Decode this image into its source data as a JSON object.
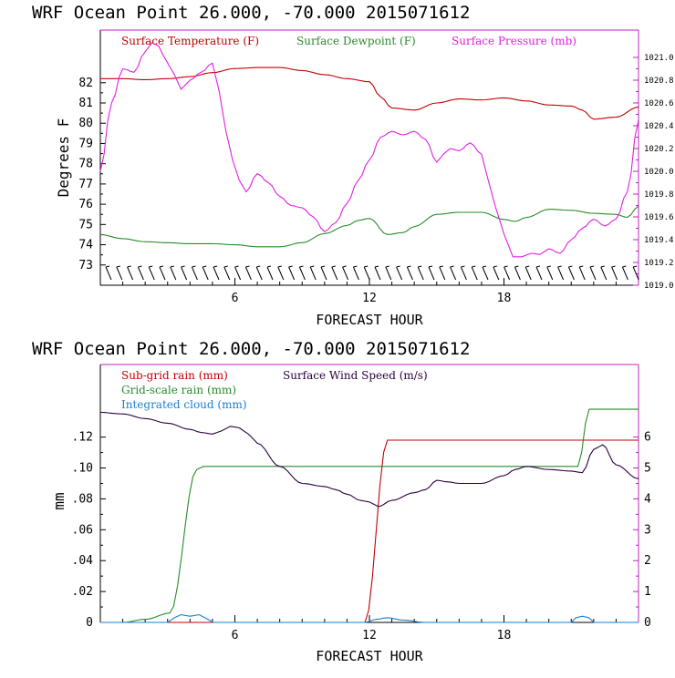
{
  "chart_data": [
    {
      "type": "line",
      "title": "WRF   Ocean Point   26.000, -70.000  2015071612",
      "xlabel": "FORECAST HOUR",
      "ylabel": "Degrees F",
      "xlim": [
        0,
        24
      ],
      "xticks": [
        6,
        12,
        18
      ],
      "xtick_labels": [
        "6",
        "12",
        "18"
      ],
      "ylim": [
        72.0,
        84.6
      ],
      "yticks": [
        73,
        74,
        75,
        76,
        77,
        78,
        79,
        80,
        81,
        82
      ],
      "ytick_labels": [
        "73",
        "74",
        "75",
        "76",
        "77",
        "78",
        "79",
        "80",
        "81",
        "82"
      ],
      "y2lim": [
        1019.0,
        1021.24
      ],
      "y2ticks": [
        1019.0,
        1019.2,
        1019.4,
        1019.6,
        1019.8,
        1020.0,
        1020.2,
        1020.4,
        1020.6,
        1020.8,
        1021.0
      ],
      "y2tick_labels": [
        "1019.0",
        "1019.2",
        "1019.4",
        "1019.6",
        "1019.8",
        "1020.0",
        "1020.2",
        "1020.4",
        "1020.6",
        "1020.8",
        "1021.0"
      ],
      "wind_barbs": true,
      "series": [
        {
          "name": "Surface Temperature (F)",
          "color": "#c00000",
          "axis": "left",
          "x": [
            0,
            1,
            2,
            3,
            4,
            5,
            6,
            7,
            8,
            9,
            10,
            11,
            12,
            12.5,
            13,
            14,
            15,
            16,
            17,
            18,
            19,
            20,
            21,
            21.5,
            22,
            23,
            24
          ],
          "y": [
            82.2,
            82.2,
            82.15,
            82.2,
            82.3,
            82.5,
            82.7,
            82.75,
            82.75,
            82.6,
            82.4,
            82.2,
            82.05,
            81.3,
            80.75,
            80.65,
            81.0,
            81.2,
            81.15,
            81.25,
            81.1,
            80.9,
            80.85,
            80.65,
            80.2,
            80.3,
            80.8
          ]
        },
        {
          "name": "Surface Dewpoint (F)",
          "color": "#2a8a2a",
          "axis": "left",
          "x": [
            0,
            1,
            2,
            3,
            4,
            5,
            6,
            7,
            8,
            9,
            10,
            11,
            11.5,
            12,
            12.8,
            13.5,
            14,
            15,
            16,
            17,
            18,
            18.5,
            19,
            20,
            21,
            22,
            23,
            23.5,
            24
          ],
          "y": [
            74.5,
            74.3,
            74.15,
            74.1,
            74.05,
            74.05,
            74.0,
            73.9,
            73.9,
            74.1,
            74.55,
            74.95,
            75.2,
            75.3,
            74.5,
            74.6,
            74.9,
            75.5,
            75.6,
            75.6,
            75.25,
            75.15,
            75.35,
            75.75,
            75.7,
            75.55,
            75.5,
            75.35,
            75.9
          ]
        },
        {
          "name": "Surface Pressure (mb)",
          "color": "#e020e0",
          "axis": "right",
          "x": [
            0,
            0.5,
            1,
            1.5,
            2,
            2.3,
            2.6,
            2.8,
            3,
            3.3,
            3.6,
            4,
            4.5,
            5,
            5.3,
            5.6,
            5.9,
            6.2,
            6.5,
            7,
            7.5,
            8,
            8.5,
            9,
            9.5,
            10,
            10.5,
            11,
            11.5,
            12,
            12.5,
            13,
            13.5,
            14,
            14.5,
            15,
            15.3,
            15.6,
            16,
            16.5,
            17,
            17.3,
            17.6,
            18,
            18.4,
            18.8,
            19.2,
            19.6,
            20,
            20.5,
            21,
            21.5,
            22,
            22.5,
            23,
            23.5,
            24
          ],
          "y": [
            1020.0,
            1020.6,
            1020.9,
            1020.87,
            1021.05,
            1021.13,
            1021.1,
            1021.02,
            1020.95,
            1020.85,
            1020.72,
            1020.8,
            1020.87,
            1020.95,
            1020.7,
            1020.35,
            1020.1,
            1019.92,
            1019.82,
            1019.98,
            1019.9,
            1019.78,
            1019.7,
            1019.68,
            1019.6,
            1019.47,
            1019.55,
            1019.72,
            1019.92,
            1020.1,
            1020.3,
            1020.35,
            1020.32,
            1020.35,
            1020.28,
            1020.08,
            1020.15,
            1020.2,
            1020.18,
            1020.25,
            1020.15,
            1019.92,
            1019.7,
            1019.45,
            1019.25,
            1019.25,
            1019.28,
            1019.27,
            1019.32,
            1019.28,
            1019.4,
            1019.5,
            1019.58,
            1019.52,
            1019.58,
            1019.82,
            1020.45
          ]
        }
      ]
    },
    {
      "type": "line",
      "title": "WRF   Ocean Point   26.000, -70.000  2015071612",
      "xlabel": "FORECAST HOUR",
      "ylabel": "mm",
      "xlim": [
        0,
        24
      ],
      "xticks": [
        6,
        12,
        18
      ],
      "xtick_labels": [
        "6",
        "12",
        "18"
      ],
      "ylim": [
        0,
        0.167
      ],
      "yticks": [
        0,
        0.02,
        0.04,
        0.06,
        0.08,
        0.1,
        0.12
      ],
      "ytick_labels": [
        "0",
        ".02",
        ".04",
        ".06",
        ".08",
        ".10",
        ".12"
      ],
      "y2lim": [
        0,
        8.35
      ],
      "y2ticks": [
        0,
        1,
        2,
        3,
        4,
        5,
        6
      ],
      "y2tick_labels": [
        "0",
        "1",
        "2",
        "3",
        "4",
        "5",
        "6"
      ],
      "series": [
        {
          "name": "Sub-grid rain (mm)",
          "color": "#c00000",
          "axis": "left",
          "x": [
            0,
            11.8,
            12.8,
            24
          ],
          "y": [
            0,
            0,
            0.118,
            0.118
          ]
        },
        {
          "name": "Grid-scale rain (mm)",
          "color": "#2a8a2a",
          "axis": "left",
          "x": [
            0,
            1,
            2,
            3.1,
            4.3,
            4.6,
            21.3,
            21.8,
            24
          ],
          "y": [
            0,
            0,
            0.002,
            0.006,
            0.099,
            0.101,
            0.101,
            0.138,
            0.138
          ]
        },
        {
          "name": "Integrated cloud (mm)",
          "color": "#1a7fd0",
          "axis": "left",
          "x": [
            0,
            3.0,
            3.3,
            3.6,
            4.0,
            4.4,
            4.8,
            5.0,
            11.8,
            12.3,
            12.8,
            13.5,
            14.5,
            21.0,
            21.2,
            21.5,
            21.8,
            22.0,
            24
          ],
          "y": [
            0,
            0,
            0.003,
            0.005,
            0.004,
            0.005,
            0.002,
            0,
            0,
            0.002,
            0.003,
            0.0015,
            0,
            0,
            0.003,
            0.004,
            0.003,
            0,
            0
          ]
        },
        {
          "name": "Surface Wind Speed (m/s)",
          "color": "#2a0040",
          "axis": "right",
          "x": [
            0,
            1,
            2,
            3,
            4,
            4.5,
            5,
            5.4,
            5.8,
            6.2,
            6.6,
            7,
            8,
            9,
            10,
            10.5,
            11,
            11.6,
            12,
            12.4,
            13,
            14,
            14.5,
            15,
            15.5,
            16,
            17,
            18,
            18.5,
            19,
            20,
            21,
            21.5,
            22,
            22.4,
            23,
            24
          ],
          "y": [
            6.8,
            6.75,
            6.6,
            6.45,
            6.25,
            6.15,
            6.1,
            6.2,
            6.35,
            6.3,
            6.1,
            5.8,
            5.05,
            4.5,
            4.4,
            4.3,
            4.15,
            3.95,
            3.9,
            3.75,
            3.95,
            4.2,
            4.3,
            4.6,
            4.55,
            4.5,
            4.5,
            4.75,
            4.95,
            5.05,
            4.95,
            4.9,
            4.85,
            5.6,
            5.75,
            5.1,
            4.65
          ]
        }
      ]
    }
  ]
}
